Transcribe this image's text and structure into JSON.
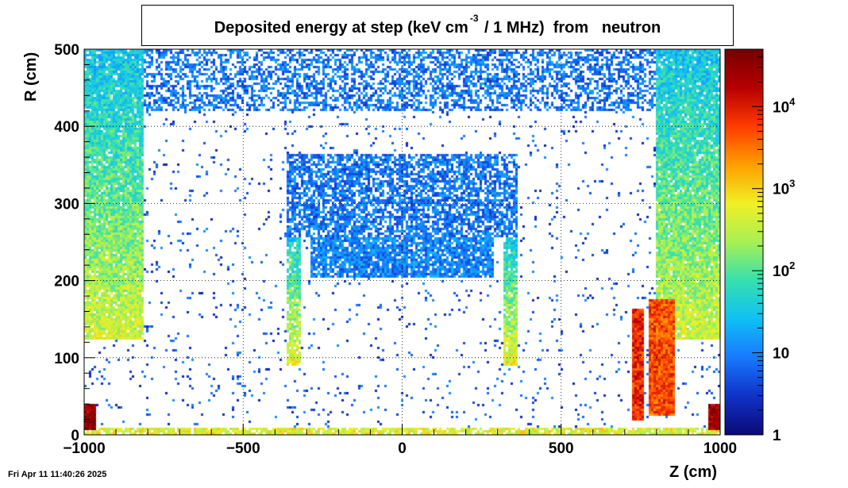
{
  "chart_data": {
    "type": "heatmap",
    "title_main": "Deposited energy at step (keV cm",
    "title_sup": "-3",
    "title_rest": " / 1 MHz)  from   neutron",
    "xlabel": "Z (cm)",
    "ylabel": "R (cm)",
    "xlim": [
      -1000,
      1000
    ],
    "ylim": [
      0,
      500
    ],
    "x_ticks": [
      -1000,
      -500,
      0,
      500,
      1000
    ],
    "x_tick_labels": [
      "−1000",
      "−500",
      "0",
      "500",
      "1000"
    ],
    "y_ticks": [
      0,
      100,
      200,
      300,
      400,
      500
    ],
    "y_tick_labels": [
      "0",
      "100",
      "200",
      "300",
      "400",
      "500"
    ],
    "grid": true,
    "colorbar": {
      "scale": "log",
      "range": [
        1,
        50000
      ],
      "ticks": [
        1,
        10,
        100,
        1000,
        10000
      ],
      "labels": [
        {
          "base": "1",
          "exp": ""
        },
        {
          "base": "10",
          "exp": ""
        },
        {
          "base": "10",
          "exp": "2"
        },
        {
          "base": "10",
          "exp": "3"
        },
        {
          "base": "10",
          "exp": "4"
        }
      ]
    },
    "regions": [
      {
        "name": "top-band",
        "z": [
          -1000,
          1000
        ],
        "r": [
          420,
          500
        ],
        "level": 8,
        "density": 0.55
      },
      {
        "name": "left-endcap",
        "z": [
          -1000,
          -810
        ],
        "r": [
          125,
          500
        ],
        "level": 30,
        "density": 0.95,
        "grad_r_low": 400
      },
      {
        "name": "right-endcap",
        "z": [
          800,
          1000
        ],
        "r": [
          125,
          500
        ],
        "level": 30,
        "density": 0.95,
        "grad_r_low": 400
      },
      {
        "name": "inner-top",
        "z": [
          -365,
          365
        ],
        "r": [
          255,
          365
        ],
        "level": 8,
        "density": 0.7
      },
      {
        "name": "inner-arch",
        "z": [
          -290,
          290
        ],
        "r": [
          205,
          255
        ],
        "level": 10,
        "density": 0.85
      },
      {
        "name": "left-leg",
        "z": [
          -365,
          -320
        ],
        "r": [
          90,
          255
        ],
        "level": 40,
        "density": 0.9,
        "grad_r_low": 600
      },
      {
        "name": "right-leg",
        "z": [
          320,
          365
        ],
        "r": [
          90,
          255
        ],
        "level": 40,
        "density": 0.9,
        "grad_r_low": 600
      },
      {
        "name": "left-corner",
        "z": [
          -1000,
          -960
        ],
        "r": [
          5,
          40
        ],
        "level": 30000,
        "density": 1.0
      },
      {
        "name": "right-corner",
        "z": [
          960,
          1000
        ],
        "r": [
          5,
          40
        ],
        "level": 30000,
        "density": 1.0
      },
      {
        "name": "right-hot-bar-1",
        "z": [
          720,
          760
        ],
        "r": [
          20,
          165
        ],
        "level": 8000,
        "density": 1.0
      },
      {
        "name": "right-hot-bar-2",
        "z": [
          775,
          860
        ],
        "r": [
          25,
          175
        ],
        "level": 5000,
        "density": 1.0
      },
      {
        "name": "bottom-strip",
        "z": [
          -1000,
          1000
        ],
        "r": [
          0,
          8
        ],
        "level": 500,
        "density": 0.8
      }
    ],
    "scatter_density": 0.04,
    "colors": {
      "scale": [
        "#0b0a78",
        "#0f33c8",
        "#1979ff",
        "#0fc0f5",
        "#37e0b0",
        "#a8f055",
        "#f0f025",
        "#ffa000",
        "#ff3c00",
        "#b80000",
        "#760000"
      ]
    }
  },
  "footer": {
    "datestamp": "Fri Apr 11 11:40:26 2025"
  }
}
